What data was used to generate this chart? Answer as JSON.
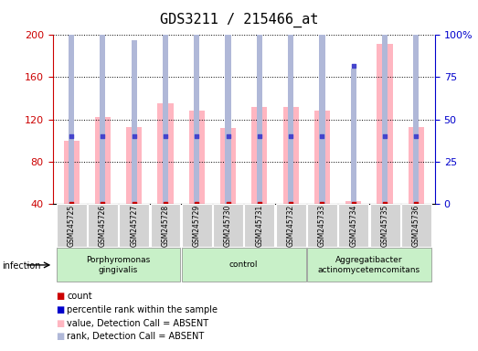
{
  "title": "GDS3211 / 215466_at",
  "samples": [
    "GSM245725",
    "GSM245726",
    "GSM245727",
    "GSM245728",
    "GSM245729",
    "GSM245730",
    "GSM245731",
    "GSM245732",
    "GSM245733",
    "GSM245734",
    "GSM245735",
    "GSM245736"
  ],
  "pink_bar_values": [
    100,
    122,
    113,
    135,
    128,
    112,
    132,
    132,
    128,
    42,
    192,
    113
  ],
  "blue_bar_values": [
    100,
    110,
    97,
    116,
    113,
    110,
    116,
    114,
    107,
    80,
    120,
    107
  ],
  "red_dot_values": [
    40,
    40,
    40,
    40,
    40,
    40,
    40,
    40,
    40,
    40,
    40,
    40
  ],
  "blue_dot_values": [
    40,
    40,
    40,
    40,
    40,
    40,
    40,
    40,
    40,
    82,
    40,
    40
  ],
  "ylim_left": [
    40,
    200
  ],
  "ylim_right": [
    0,
    100
  ],
  "yticks_left": [
    40,
    80,
    120,
    160,
    200
  ],
  "yticks_right": [
    0,
    25,
    50,
    75,
    100
  ],
  "ytick_labels_right": [
    "0",
    "25",
    "50",
    "75",
    "100%"
  ],
  "group_labels": [
    "Porphyromonas\ngingivalis",
    "control",
    "Aggregatibacter\nactinomycetemcomitans"
  ],
  "group_ranges": [
    [
      0,
      3
    ],
    [
      4,
      7
    ],
    [
      8,
      11
    ]
  ],
  "infection_label": "infection",
  "pink_color": "#FFB6C1",
  "blue_bar_color": "#b0b8d8",
  "red_dot_color": "#cc0000",
  "blue_dot_color": "#4444cc",
  "axis_tick_color_left": "#cc0000",
  "axis_tick_color_right": "#0000cc",
  "legend_items": [
    {
      "label": "count",
      "color": "#cc0000"
    },
    {
      "label": "percentile rank within the sample",
      "color": "#0000cc"
    },
    {
      "label": "value, Detection Call = ABSENT",
      "color": "#FFB6C1"
    },
    {
      "label": "rank, Detection Call = ABSENT",
      "color": "#b0b8d8"
    }
  ],
  "sample_bg_color": "#d3d3d3",
  "plot_bg_color": "#ffffff",
  "title_fontsize": 11,
  "tick_fontsize": 8,
  "label_fontsize": 7
}
